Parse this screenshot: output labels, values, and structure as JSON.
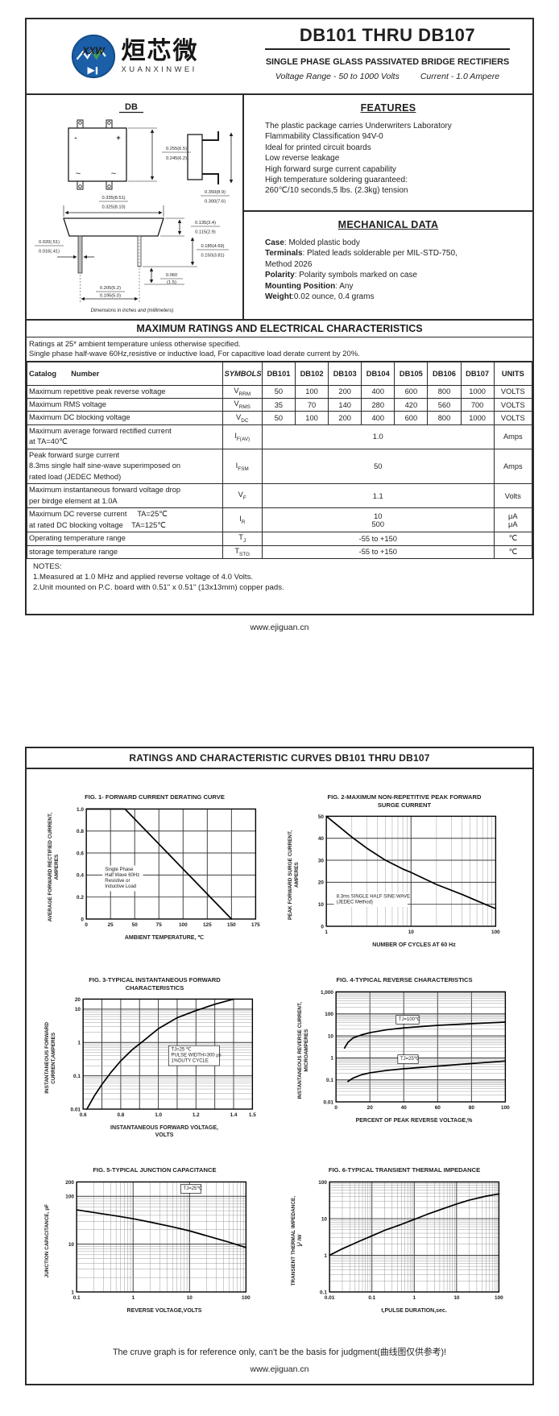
{
  "page1": {
    "logo": {
      "monogram": "XXW",
      "chinese": "烜芯微",
      "pinyin": "XUANXINWEI"
    },
    "header": {
      "title": "DB101 THRU DB107",
      "subtitle": "SINGLE PHASE GLASS PASSIVATED BRIDGE RECTIFIERS",
      "voltage_range": "Voltage Range - 50 to 1000 Volts",
      "current": "Current -  1.0 Ampere"
    },
    "package": {
      "label": "DB",
      "marks": {
        "minus": "-",
        "plus": "+",
        "ac": "~"
      },
      "dims": {
        "d1": [
          "0.255(6.5)",
          "0.245(6.2)"
        ],
        "d2": [
          "0.350(8.9)",
          "0.300(7.6)"
        ],
        "d3": [
          "0.335(8.51)",
          "0.325(8.10)"
        ],
        "d4": [
          "0.135(3.4)",
          "0.115(2.9)"
        ],
        "d5": [
          "0.185(4.69)",
          "0.150(3.81)"
        ],
        "d6": [
          "0.020(.51)",
          "0.016(.41)"
        ],
        "d7": [
          "0.205(5.2)",
          "0.195(5.0)"
        ],
        "d8": [
          "0.060",
          "(1.5)"
        ]
      },
      "caption": "Dimensions in inches and (millimeters)"
    },
    "features": {
      "title": "FEATURES",
      "items": [
        "The plastic package carries Underwriters Laboratory",
        "Flammability Classification 94V-0",
        "Ideal for printed circuit boards",
        "Low reverse leakage",
        "High forward surge current capability",
        "High temperature soldering guaranteed:",
        "260℃/10 seconds,5 lbs. (2.3kg) tension"
      ]
    },
    "mechanical": {
      "title": "MECHANICAL DATA",
      "lines": [
        {
          "b": "Case",
          "t": ": Molded plastic body"
        },
        {
          "b": "Terminals",
          "t": ": Plated leads solderable per MIL-STD-750,"
        },
        {
          "b": "",
          "t": "Method 2026"
        },
        {
          "b": "Polarity",
          "t": ": Polarity symbols marked on case"
        },
        {
          "b": "Mounting Position",
          "t": ": Any"
        },
        {
          "b": "Weight",
          "t": ":0.02 ounce, 0.4 grams"
        }
      ]
    },
    "ratings": {
      "banner": "MAXIMUM RATINGS AND ELECTRICAL CHARACTERISTICS",
      "note1": "Ratings at 25* ambient temperature unless otherwise specified.",
      "note2": "Single phase half-wave 60Hz,resistive or inductive load, For capacitive load derate current by 20%."
    },
    "table": {
      "head": {
        "catalog_number": "Catalog       Number",
        "symbols": "SYMBOLS",
        "parts": [
          "DB101",
          "DB102",
          "DB103",
          "DB104",
          "DB105",
          "DB106",
          "DB107"
        ],
        "units": "UNITS"
      },
      "rows": [
        {
          "label": [
            "Maximum repetitive peak reverse voltage"
          ],
          "sym": "V",
          "sub": "RRM",
          "vals": [
            "50",
            "100",
            "200",
            "400",
            "600",
            "800",
            "1000"
          ],
          "unit": "VOLTS"
        },
        {
          "label": [
            "Maximum RMS voltage"
          ],
          "sym": "V",
          "sub": "RMS",
          "vals": [
            "35",
            "70",
            "140",
            "280",
            "420",
            "560",
            "700"
          ],
          "unit": "VOLTS"
        },
        {
          "label": [
            "Maximum DC blocking voltage"
          ],
          "sym": "V",
          "sub": "DC",
          "vals": [
            "50",
            "100",
            "200",
            "400",
            "600",
            "800",
            "1000"
          ],
          "unit": "VOLTS"
        },
        {
          "label": [
            "Maximum average forward rectified current",
            "at TA=40℃"
          ],
          "sym": "I",
          "sub": "F(AV)",
          "span": "1.0",
          "unit": "Amps"
        },
        {
          "label": [
            "Peak forward surge current",
            "8.3ms single half sine-wave superimposed on",
            "rated load (JEDEC Method)"
          ],
          "sym": "I",
          "sub": "FSM",
          "span": "50",
          "unit": "Amps"
        },
        {
          "label": [
            "Maximum instantaneous forward voltage drop",
            "per birdge element at 1.0A"
          ],
          "sym": "V",
          "sub": "F",
          "span": "1.1",
          "unit": "Volts"
        },
        {
          "label": [
            "Maximum DC reverse current     TA=25℃",
            "at rated DC blocking voltage    TA=125℃"
          ],
          "sym": "I",
          "sub": "R",
          "span2": [
            "10",
            "500"
          ],
          "unit2": [
            "μA",
            "μA"
          ]
        },
        {
          "label": [
            "Operating temperature range"
          ],
          "sym": "T",
          "sub": "J",
          "span": "-55 to +150",
          "unit": "℃"
        },
        {
          "label": [
            "storage temperature range"
          ],
          "sym": "T",
          "sub": "STG",
          "span": "-55 to +150",
          "unit": "℃"
        }
      ]
    },
    "notes": {
      "title": "NOTES:",
      "items": [
        "1.Measured at 1.0 MHz and applied reverse voltage of 4.0 Volts.",
        "2.Unit mounted on P.C. board with 0.51\"  x 0.51\"  (13x13mm) copper pads."
      ]
    },
    "footer_url": "www.ejiguan.cn"
  },
  "page2": {
    "banner": "RATINGS AND CHARACTERISTIC CURVES DB101 THRU DB107",
    "reference_note": "The cruve graph is for reference only, can't be the basis for judgment(曲线图仅供参考)!",
    "footer_url": "www.ejiguan.cn"
  },
  "colors": {
    "logo_blue": "#1a5fa8",
    "logo_green": "#43a13a",
    "ink": "#1f1f1f",
    "border": "#2b2b2b"
  },
  "chart_data": [
    {
      "name": "fig1",
      "type": "line",
      "title": [
        "FIG. 1- FORWARD CURRENT DERATING CURVE"
      ],
      "xlabel": [
        "AMBIENT TEMPERATURE, ℃"
      ],
      "ylabel": [
        "AVERAGE FORWARD RECTIFIED CURRENT,",
        "AMPERES"
      ],
      "xaxis": {
        "scale": "linear",
        "min": 0,
        "max": 175,
        "ticks": [
          [
            0,
            "0"
          ],
          [
            25,
            "25"
          ],
          [
            50,
            "50"
          ],
          [
            75,
            "75"
          ],
          [
            100,
            "100"
          ],
          [
            125,
            "125"
          ],
          [
            150,
            "150"
          ],
          [
            175,
            "175"
          ]
        ]
      },
      "yaxis": {
        "scale": "linear",
        "min": 0,
        "max": 1,
        "ticks": [
          [
            0,
            "0"
          ],
          [
            0.2,
            "0.2"
          ],
          [
            0.4,
            "0.4"
          ],
          [
            0.6,
            "0.6"
          ],
          [
            0.8,
            "0.8"
          ],
          [
            1,
            "1.0"
          ]
        ]
      },
      "series": [
        {
          "name": "derating",
          "points": [
            [
              0,
              1
            ],
            [
              40,
              1
            ],
            [
              150,
              0
            ]
          ]
        }
      ],
      "annotations": [
        {
          "x": 11,
          "y": 56,
          "box": false,
          "lines": [
            "Single Phase",
            "Half Wave 60Hz",
            "Resistive or",
            "Inductive Load"
          ]
        }
      ]
    },
    {
      "name": "fig2",
      "type": "line",
      "title": [
        "FIG. 2-MAXIMUM NON-REPETITIVE PEAK FORWARD",
        "SURGE CURRENT"
      ],
      "xlabel": [
        "NUMBER OF CYCLES AT 60 Hz"
      ],
      "ylabel": [
        "PEAK  FORWARD SURGE CURRENT,",
        "AMPERES"
      ],
      "xaxis": {
        "scale": "log",
        "min": 1,
        "max": 100,
        "ticks": [
          [
            1,
            "1"
          ],
          [
            10,
            "10"
          ],
          [
            100,
            "100"
          ]
        ]
      },
      "yaxis": {
        "scale": "linear",
        "min": 0,
        "max": 50,
        "ticks": [
          [
            0,
            "0"
          ],
          [
            10,
            "10"
          ],
          [
            20,
            "20"
          ],
          [
            30,
            "30"
          ],
          [
            40,
            "40"
          ],
          [
            50,
            "50"
          ]
        ]
      },
      "series": [
        {
          "name": "IFSM",
          "points": [
            [
              1,
              50
            ],
            [
              1.5,
              44.5
            ],
            [
              2,
              40.5
            ],
            [
              3,
              35.5
            ],
            [
              5,
              30
            ],
            [
              8,
              26
            ],
            [
              10,
              24.5
            ],
            [
              20,
              19
            ],
            [
              40,
              14.5
            ],
            [
              70,
              10.5
            ],
            [
              100,
              8
            ]
          ]
        }
      ],
      "annotations": [
        {
          "x": 6,
          "y": 74,
          "box": false,
          "lines": [
            "8.3ms SINGLE HALF SINE-WAVE",
            "(JEDEC Method)"
          ]
        }
      ]
    },
    {
      "name": "fig3",
      "type": "line",
      "title": [
        "FIG. 3-TYPICAL INSTANTANEOUS FORWARD",
        "CHARACTERISTICS"
      ],
      "xlabel": [
        "INSTANTANEOUS FORWARD VOLTAGE,",
        "VOLTS"
      ],
      "ylabel": [
        "INSTANTANEOUS FORWARD",
        "CURRENT,AMPERES"
      ],
      "xaxis": {
        "scale": "linear",
        "min": 0.6,
        "max": 1.5,
        "ticks": [
          [
            0.6,
            "0.6"
          ],
          [
            0.7,
            ""
          ],
          [
            0.8,
            "0.8"
          ],
          [
            0.9,
            ""
          ],
          [
            1.0,
            "1.0"
          ],
          [
            1.1,
            ""
          ],
          [
            1.2,
            "1.2"
          ],
          [
            1.3,
            ""
          ],
          [
            1.4,
            "1.4"
          ],
          [
            1.5,
            "1.5"
          ]
        ]
      },
      "yaxis": {
        "scale": "log",
        "min": 0.01,
        "max": 20,
        "ticks": [
          [
            0.01,
            "0.01"
          ],
          [
            0.1,
            "0.1"
          ],
          [
            1,
            "1"
          ],
          [
            10,
            "10"
          ],
          [
            20,
            "20"
          ]
        ]
      },
      "series": [
        {
          "name": "VF-IF TJ=25C",
          "points": [
            [
              0.62,
              0.01
            ],
            [
              0.66,
              0.025
            ],
            [
              0.7,
              0.055
            ],
            [
              0.75,
              0.13
            ],
            [
              0.8,
              0.28
            ],
            [
              0.86,
              0.6
            ],
            [
              0.92,
              1.1
            ],
            [
              1.0,
              2.6
            ],
            [
              1.1,
              5.5
            ],
            [
              1.2,
              9
            ],
            [
              1.3,
              14
            ],
            [
              1.4,
              20
            ]
          ]
        }
      ],
      "annotations": [
        {
          "x": 52,
          "y": 47,
          "box": true,
          "lines": [
            "TJ=25 ℃",
            "PULSE WIDTH=300 μs",
            "1%DUTY CYCLE"
          ]
        }
      ]
    },
    {
      "name": "fig4",
      "type": "line",
      "title": [
        "FIG. 4-TYPICAL REVERSE CHARACTERISTICS"
      ],
      "xlabel": [
        "PERCENT OF PEAK REVERSE VOLTAGE,%"
      ],
      "ylabel": [
        "INSTANTANEOUS REVERSE CURRENT,",
        "MICROAMPERES"
      ],
      "xaxis": {
        "scale": "linear",
        "min": 0,
        "max": 100,
        "ticks": [
          [
            0,
            "0"
          ],
          [
            20,
            "20"
          ],
          [
            40,
            "40"
          ],
          [
            60,
            "60"
          ],
          [
            80,
            "80"
          ],
          [
            100,
            "100"
          ]
        ]
      },
      "yaxis": {
        "scale": "log",
        "min": 0.01,
        "max": 1000,
        "ticks": [
          [
            0.01,
            "0.01"
          ],
          [
            0.1,
            "0.1"
          ],
          [
            1,
            "1"
          ],
          [
            10,
            "10"
          ],
          [
            100,
            "100"
          ],
          [
            1000,
            "1,000"
          ]
        ]
      },
      "series": [
        {
          "name": "TJ=100℃",
          "points": [
            [
              5,
              2.8
            ],
            [
              7,
              5
            ],
            [
              10,
              8
            ],
            [
              15,
              11
            ],
            [
              20,
              14
            ],
            [
              30,
              19
            ],
            [
              40,
              23
            ],
            [
              60,
              30
            ],
            [
              80,
              36
            ],
            [
              100,
              42
            ]
          ]
        },
        {
          "name": "TJ=25℃",
          "points": [
            [
              7,
              0.085
            ],
            [
              10,
              0.12
            ],
            [
              15,
              0.17
            ],
            [
              20,
              0.21
            ],
            [
              30,
              0.27
            ],
            [
              40,
              0.32
            ],
            [
              60,
              0.42
            ],
            [
              80,
              0.55
            ],
            [
              100,
              0.72
            ]
          ]
        }
      ],
      "annotations": [
        {
          "x": 37,
          "y": 26,
          "box": true,
          "lines": [
            "TJ=100℃"
          ]
        },
        {
          "x": 38,
          "y": 62,
          "box": true,
          "lines": [
            "TJ=25℃"
          ]
        }
      ]
    },
    {
      "name": "fig5",
      "type": "line",
      "title": [
        "FIG. 5-TYPICAL JUNCTION CAPACITANCE"
      ],
      "xlabel": [
        "REVERSE VOLTAGE,VOLTS"
      ],
      "ylabel": [
        "JUNCTION CAPACITANCE, pF"
      ],
      "xaxis": {
        "scale": "log",
        "min": 0.1,
        "max": 100,
        "ticks": [
          [
            0.1,
            "0.1"
          ],
          [
            1,
            "1"
          ],
          [
            10,
            "10"
          ],
          [
            100,
            "100"
          ]
        ]
      },
      "yaxis": {
        "scale": "log",
        "min": 1,
        "max": 200,
        "ticks": [
          [
            1,
            "1"
          ],
          [
            10,
            "10"
          ],
          [
            100,
            "100"
          ],
          [
            200,
            "200"
          ]
        ]
      },
      "series": [
        {
          "name": "CJ",
          "points": [
            [
              0.1,
              52
            ],
            [
              0.2,
              46
            ],
            [
              0.5,
              39
            ],
            [
              1,
              34
            ],
            [
              2,
              29
            ],
            [
              5,
              23
            ],
            [
              10,
              19
            ],
            [
              20,
              15
            ],
            [
              50,
              11
            ],
            [
              100,
              8.5
            ]
          ]
        }
      ],
      "annotations": [
        {
          "x": 63,
          "y": 7,
          "box": true,
          "lines": [
            "TJ=25℃"
          ]
        }
      ]
    },
    {
      "name": "fig6",
      "type": "line",
      "title": [
        "FIG. 6-TYPICAL TRANSIENT THERMAL IMPEDANCE"
      ],
      "xlabel": [
        "t,PULSE DURATION,sec."
      ],
      "ylabel": [
        "TRANSIENT THERMAL IMPEDANCE,",
        "℃/W"
      ],
      "xaxis": {
        "scale": "log",
        "min": 0.01,
        "max": 100,
        "ticks": [
          [
            0.01,
            "0.01"
          ],
          [
            0.1,
            "0.1"
          ],
          [
            1,
            "1"
          ],
          [
            10,
            "10"
          ],
          [
            100,
            "100"
          ]
        ]
      },
      "yaxis": {
        "scale": "log",
        "min": 0.1,
        "max": 100,
        "ticks": [
          [
            0.1,
            "0.1"
          ],
          [
            1,
            "1"
          ],
          [
            10,
            "10"
          ],
          [
            100,
            "100"
          ]
        ]
      },
      "series": [
        {
          "name": "Zth",
          "points": [
            [
              0.01,
              1.0
            ],
            [
              0.02,
              1.5
            ],
            [
              0.05,
              2.4
            ],
            [
              0.1,
              3.4
            ],
            [
              0.2,
              4.8
            ],
            [
              0.5,
              7
            ],
            [
              1,
              9.5
            ],
            [
              2,
              13
            ],
            [
              5,
              19
            ],
            [
              10,
              25
            ],
            [
              20,
              32
            ],
            [
              50,
              41
            ],
            [
              100,
              47
            ]
          ]
        }
      ],
      "annotations": []
    }
  ]
}
